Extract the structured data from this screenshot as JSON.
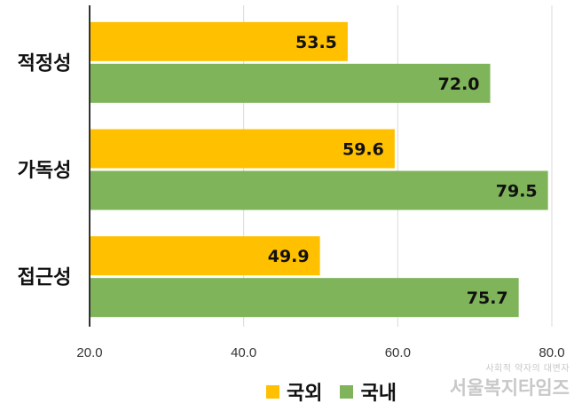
{
  "chart_data": {
    "type": "bar",
    "orientation": "horizontal",
    "categories": [
      "적정성",
      "가독성",
      "접근성"
    ],
    "series": [
      {
        "name": "국외",
        "color": "#FFC000",
        "values": [
          53.5,
          59.6,
          49.9
        ]
      },
      {
        "name": "국내",
        "color": "#7FB45A",
        "values": [
          72.0,
          79.5,
          75.7
        ]
      }
    ],
    "xlim": [
      20.0,
      80.0
    ],
    "xticks": [
      "20.0",
      "40.0",
      "60.0",
      "80.0"
    ],
    "grid": true,
    "legend_position": "bottom"
  },
  "watermark": {
    "small": "사회적 약자의 대변자",
    "big": "서울복지타임즈"
  }
}
